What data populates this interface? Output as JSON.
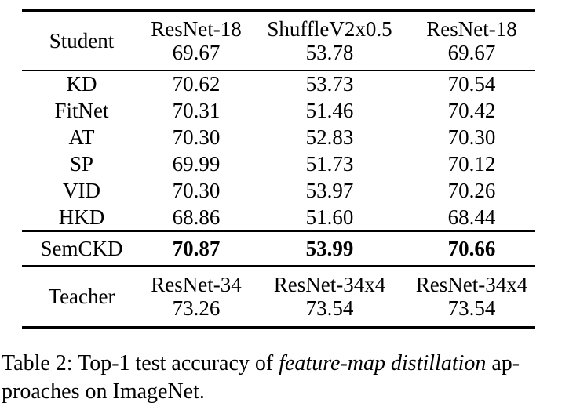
{
  "table": {
    "student_row": {
      "label": "Student",
      "columns": [
        {
          "model": "ResNet-18",
          "accuracy": "69.67"
        },
        {
          "model": "ShuffleV2x0.5",
          "accuracy": "53.78"
        },
        {
          "model": "ResNet-18",
          "accuracy": "69.67"
        }
      ]
    },
    "methods": [
      {
        "name": "KD",
        "values": [
          "70.62",
          "53.73",
          "70.54"
        ]
      },
      {
        "name": "FitNet",
        "values": [
          "70.31",
          "51.46",
          "70.42"
        ]
      },
      {
        "name": "AT",
        "values": [
          "70.30",
          "52.83",
          "70.30"
        ]
      },
      {
        "name": "SP",
        "values": [
          "69.99",
          "51.73",
          "70.12"
        ]
      },
      {
        "name": "VID",
        "values": [
          "70.30",
          "53.97",
          "70.26"
        ]
      },
      {
        "name": "HKD",
        "values": [
          "68.86",
          "51.60",
          "68.44"
        ]
      }
    ],
    "proposed_row": {
      "name": "SemCKD",
      "values": [
        "70.87",
        "53.99",
        "70.66"
      ]
    },
    "teacher_row": {
      "label": "Teacher",
      "columns": [
        {
          "model": "ResNet-34",
          "accuracy": "73.26"
        },
        {
          "model": "ResNet-34x4",
          "accuracy": "73.54"
        },
        {
          "model": "ResNet-34x4",
          "accuracy": "73.54"
        }
      ]
    }
  },
  "caption": {
    "line1_prefix": "Table 2: Top-1 test accuracy of ",
    "line1_italic": "feature-map distillation",
    "line1_suffix": " ap-",
    "line2": "proaches on ImageNet."
  },
  "colors": {
    "text": "#000000",
    "background": "#ffffff",
    "rule": "#000000"
  }
}
